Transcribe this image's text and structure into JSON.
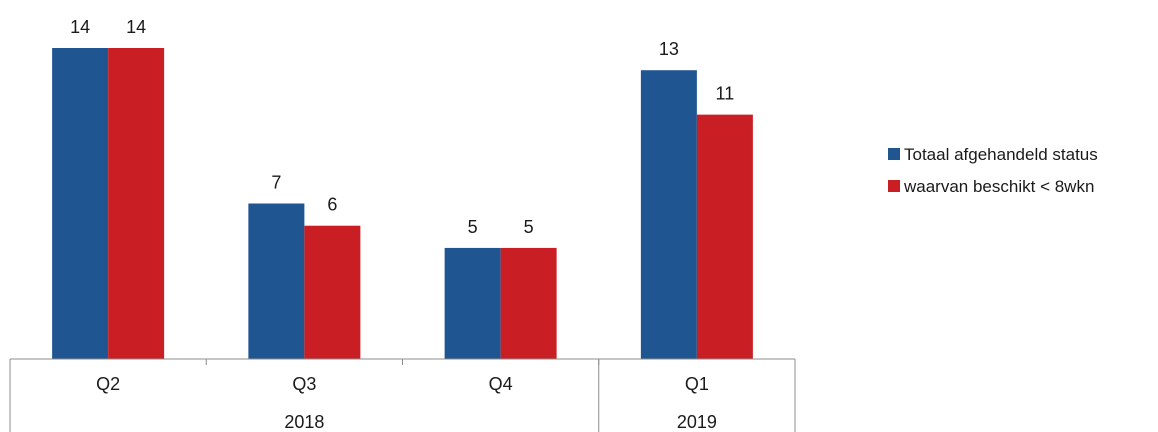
{
  "chart_data": {
    "type": "bar",
    "categories": [
      "Q2",
      "Q3",
      "Q4",
      "Q1"
    ],
    "groups": [
      {
        "label": "2018",
        "categories": [
          "Q2",
          "Q3",
          "Q4"
        ]
      },
      {
        "label": "2019",
        "categories": [
          "Q1"
        ]
      }
    ],
    "series": [
      {
        "name": "Totaal afgehandeld status",
        "color": "#1f5590",
        "values": [
          14,
          7,
          5,
          13
        ]
      },
      {
        "name": "waarvan beschikt < 8wkn",
        "color": "#c91f24",
        "values": [
          14,
          6,
          5,
          11
        ]
      }
    ],
    "title": "",
    "xlabel": "",
    "ylabel": "",
    "ylim": [
      0,
      14
    ],
    "grid": false,
    "data_labels": true,
    "legend_position": "right"
  }
}
